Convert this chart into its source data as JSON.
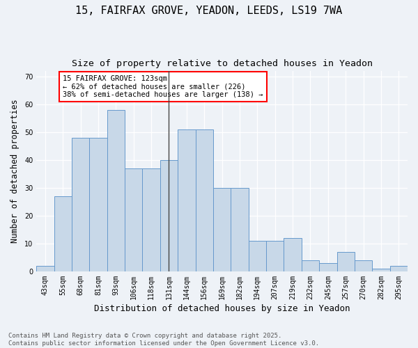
{
  "title1": "15, FAIRFAX GROVE, YEADON, LEEDS, LS19 7WA",
  "title2": "Size of property relative to detached houses in Yeadon",
  "xlabel": "Distribution of detached houses by size in Yeadon",
  "ylabel": "Number of detached properties",
  "categories": [
    "43sqm",
    "55sqm",
    "68sqm",
    "81sqm",
    "93sqm",
    "106sqm",
    "118sqm",
    "131sqm",
    "144sqm",
    "156sqm",
    "169sqm",
    "182sqm",
    "194sqm",
    "207sqm",
    "219sqm",
    "232sqm",
    "245sqm",
    "257sqm",
    "270sqm",
    "282sqm",
    "295sqm"
  ],
  "bar_values": [
    2,
    27,
    48,
    48,
    58,
    37,
    37,
    40,
    51,
    51,
    30,
    30,
    11,
    11,
    12,
    4,
    3,
    7,
    4,
    1,
    2
  ],
  "bar_color": "#c8d8e8",
  "bar_edge_color": "#6699cc",
  "annotation_text": "15 FAIRFAX GROVE: 123sqm\n← 62% of detached houses are smaller (226)\n38% of semi-detached houses are larger (138) →",
  "annotation_box_facecolor": "white",
  "annotation_box_edgecolor": "red",
  "vline_x_index": 7,
  "vline_color": "#444444",
  "ylim": [
    0,
    72
  ],
  "yticks": [
    0,
    10,
    20,
    30,
    40,
    50,
    60,
    70
  ],
  "bg_color": "#eef2f7",
  "footer": "Contains HM Land Registry data © Crown copyright and database right 2025.\nContains public sector information licensed under the Open Government Licence v3.0.",
  "title_fontsize": 11,
  "subtitle_fontsize": 9.5,
  "xlabel_fontsize": 9,
  "ylabel_fontsize": 8.5,
  "tick_fontsize": 7,
  "footer_fontsize": 6.5,
  "annot_fontsize": 7.5
}
